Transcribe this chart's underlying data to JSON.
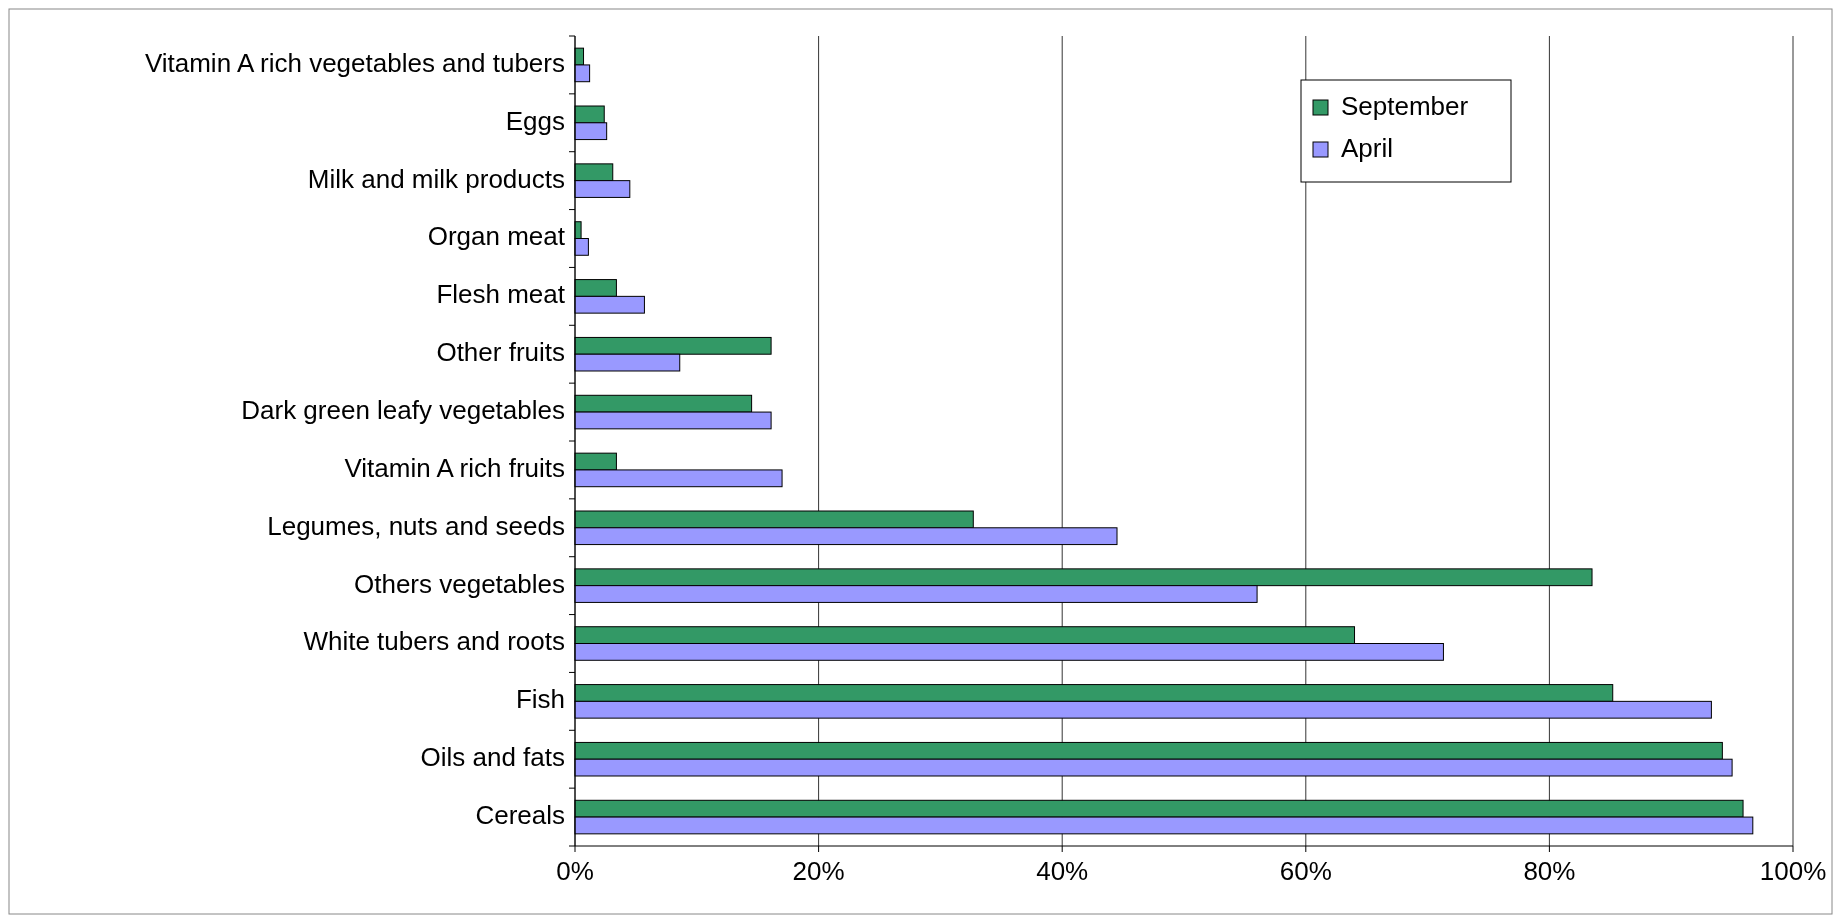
{
  "chart_data": {
    "type": "bar",
    "orientation": "horizontal",
    "categories": [
      "Vitamin A rich vegetables and tubers",
      "Eggs",
      "Milk and milk products",
      "Organ meat",
      "Flesh meat",
      "Other fruits",
      "Dark green leafy vegetables",
      "Vitamin A rich fruits",
      "Legumes, nuts and seeds",
      "Others vegetables",
      "White tubers and roots",
      "Fish",
      "Oils and fats",
      "Cereals"
    ],
    "series": [
      {
        "name": "September",
        "color": "#339966",
        "values": [
          0.7,
          2.4,
          3.1,
          0.5,
          3.4,
          16.1,
          14.5,
          3.4,
          32.7,
          83.5,
          64.0,
          85.2,
          94.2,
          95.9
        ]
      },
      {
        "name": "April",
        "color": "#9999ff",
        "values": [
          1.2,
          2.6,
          4.5,
          1.1,
          5.7,
          8.6,
          16.1,
          17.0,
          44.5,
          56.0,
          71.3,
          93.3,
          95.0,
          96.7
        ]
      }
    ],
    "xlim": [
      0,
      100
    ],
    "xticks": [
      {
        "value": 0,
        "label": "0%"
      },
      {
        "value": 20,
        "label": "20%"
      },
      {
        "value": 40,
        "label": "40%"
      },
      {
        "value": 60,
        "label": "60%"
      },
      {
        "value": 80,
        "label": "80%"
      },
      {
        "value": 100,
        "label": "100%"
      }
    ],
    "grid": "x",
    "legend": "top right"
  }
}
